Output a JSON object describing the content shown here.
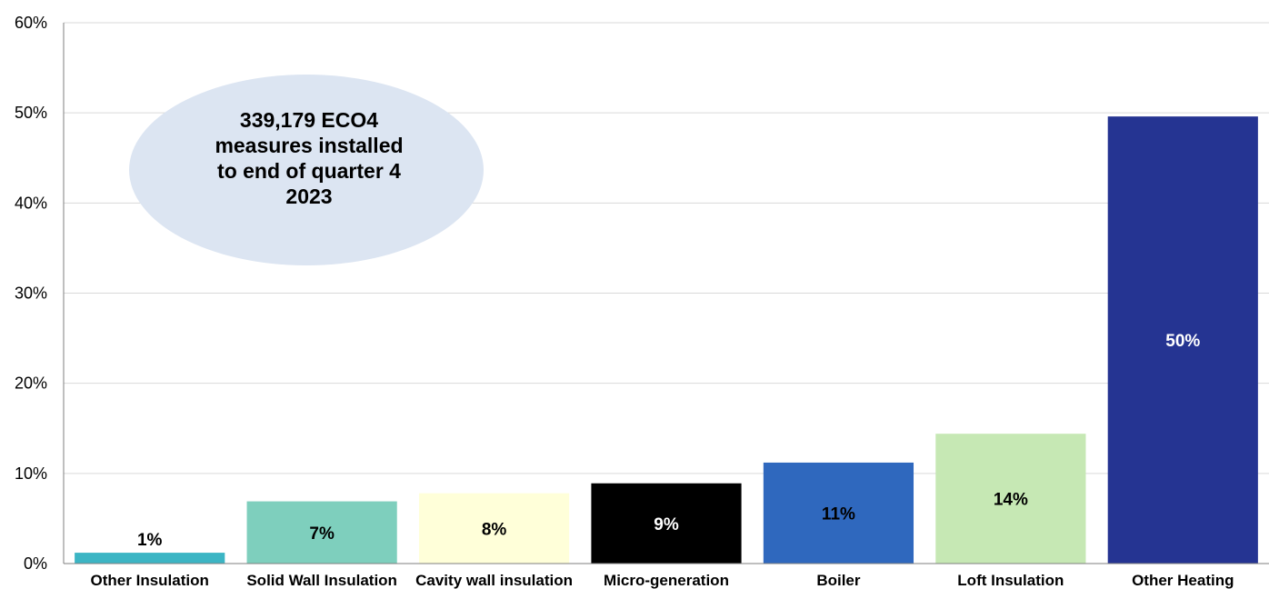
{
  "chart_data": {
    "type": "bar",
    "title": "",
    "xlabel": "",
    "ylabel": "",
    "ylim": [
      0,
      60
    ],
    "y_ticks": [
      "0%",
      "10%",
      "20%",
      "30%",
      "40%",
      "50%",
      "60%"
    ],
    "grid": "horizontal",
    "categories": [
      "Other Insulation",
      "Solid Wall Insulation",
      "Cavity wall insulation",
      "Micro-generation",
      "Boiler",
      "Loft Insulation",
      "Other Heating"
    ],
    "values": [
      1.2,
      6.9,
      7.8,
      8.9,
      11.2,
      14.4,
      49.6
    ],
    "data_labels": [
      "1%",
      "7%",
      "8%",
      "9%",
      "11%",
      "14%",
      "50%"
    ],
    "colors": [
      "#3cb5c4",
      "#7ecfbd",
      "#ffffd9",
      "#000000",
      "#2f68be",
      "#c6e8b4",
      "#253492"
    ],
    "label_colors": [
      "#000000",
      "#000000",
      "#000000",
      "#ffffff",
      "#000000",
      "#000000",
      "#ffffff"
    ],
    "annotation": {
      "lines": [
        "339,179 ECO4",
        "measures installed",
        "to end of quarter 4",
        "2023"
      ],
      "color": "#dce5f2"
    }
  }
}
